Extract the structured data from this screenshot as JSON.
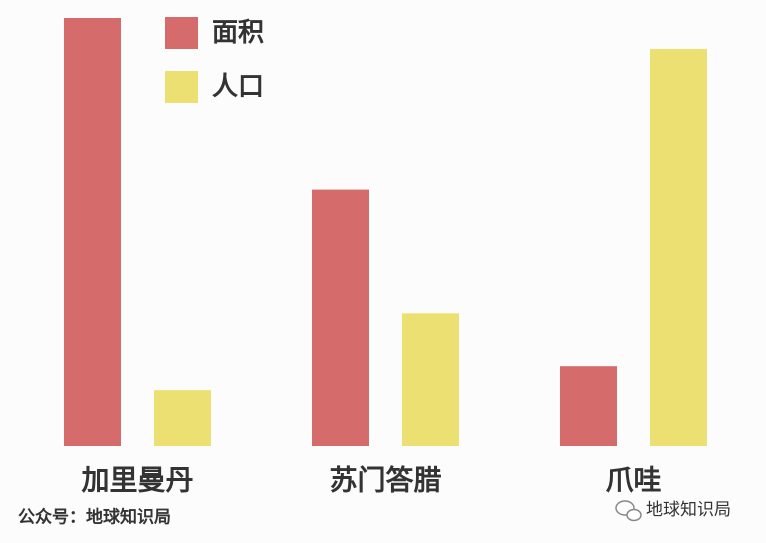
{
  "chart_data": {
    "type": "bar",
    "categories": [
      "加里曼丹",
      "苏门答腊",
      "爪哇"
    ],
    "series": [
      {
        "name": "面积",
        "color": "#d66b6b",
        "values": [
          429,
          257,
          80
        ]
      },
      {
        "name": "人口",
        "color": "#ede073",
        "values": [
          56,
          133,
          398
        ]
      }
    ],
    "ylim": [
      0,
      430
    ],
    "source": "公众号：地球知识局",
    "badge": "地球知识局"
  }
}
